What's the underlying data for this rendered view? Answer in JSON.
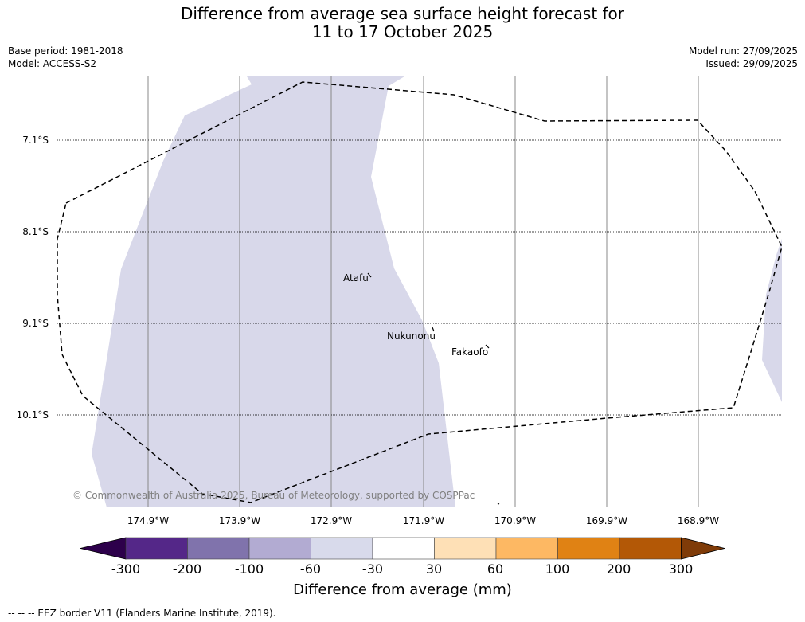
{
  "title": {
    "line1": "Difference from average sea surface height forecast for",
    "line2": "11 to 17 October 2025"
  },
  "meta": {
    "base_period": "Base period: 1981-2018",
    "model": "Model: ACCESS-S2",
    "model_run": "Model run: 27/09/2025",
    "issued": "Issued: 29/09/2025"
  },
  "map": {
    "latitude_labels": [
      "7.1°S",
      "8.1°S",
      "9.1°S",
      "10.1°S"
    ],
    "longitude_labels": [
      "174.9°W",
      "173.9°W",
      "172.9°W",
      "171.9°W",
      "170.9°W",
      "169.9°W",
      "168.9°W"
    ],
    "places": [
      "Atafu",
      "Nukunonu",
      "Fakaofo"
    ],
    "copyright": "© Commonwealth of Australia 2025, Bureau of Meteorology, supported by COSPPac",
    "anomaly_fill_color": "#d8d8ea"
  },
  "colorbar": {
    "ticks": [
      "-300",
      "-200",
      "-100",
      "-60",
      "-30",
      "30",
      "60",
      "100",
      "200",
      "300"
    ],
    "colors": [
      "#2d004b",
      "#542788",
      "#8073ac",
      "#b2abd2",
      "#d8daeb",
      "#ffffff",
      "#fee0b6",
      "#fdb863",
      "#e08214",
      "#b35806",
      "#7f3b08"
    ],
    "label": "Difference from average (mm)"
  },
  "legend": {
    "text": "-- -- -- EEZ border V11 (Flanders Marine Institute, 2019)."
  }
}
